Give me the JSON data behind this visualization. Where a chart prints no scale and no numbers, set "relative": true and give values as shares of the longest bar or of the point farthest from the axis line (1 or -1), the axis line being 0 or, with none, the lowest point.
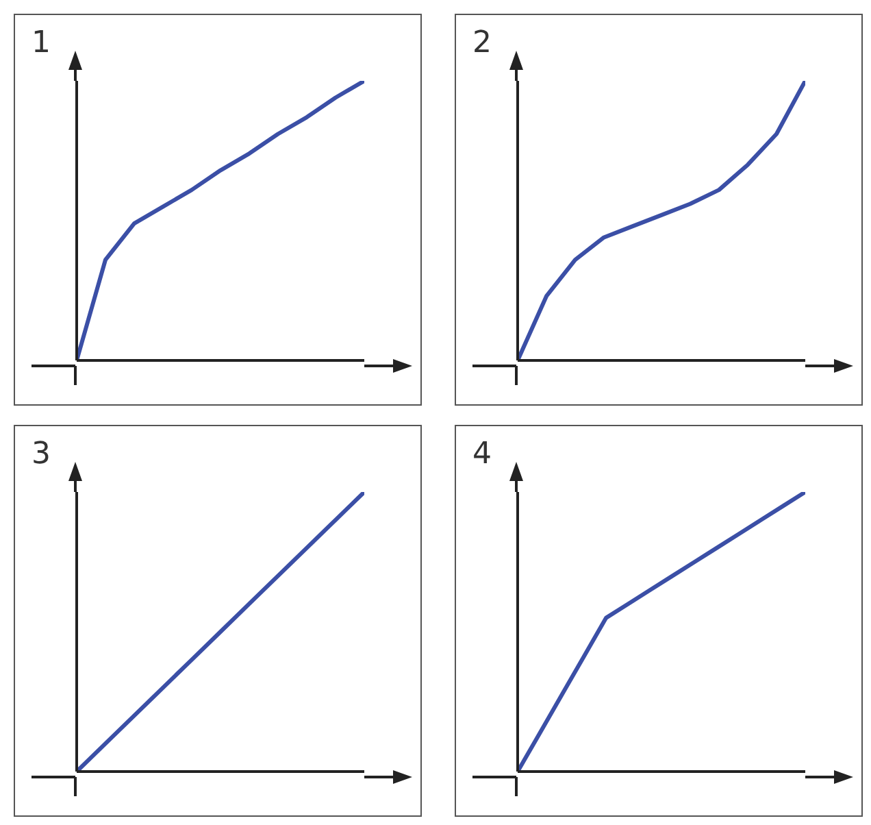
{
  "chart_data": [
    {
      "type": "line",
      "title": "1",
      "relative": true,
      "categories": [
        null,
        null,
        null,
        null,
        null,
        null,
        null,
        null,
        null,
        null,
        null
      ],
      "series": [
        {
          "color": "#3b4fa6",
          "values": [
            0,
            0.36,
            0.49,
            0.55,
            0.61,
            0.68,
            0.74,
            0.81,
            0.87,
            0.94,
            1
          ]
        }
      ]
    },
    {
      "type": "line",
      "title": "2",
      "relative": true,
      "categories": [
        null,
        null,
        null,
        null,
        null,
        null,
        null,
        null,
        null,
        null,
        null
      ],
      "series": [
        {
          "color": "#3b4fa6",
          "values": [
            0,
            0.23,
            0.36,
            0.44,
            0.48,
            0.52,
            0.56,
            0.61,
            0.7,
            0.81,
            1
          ]
        }
      ]
    },
    {
      "type": "line",
      "title": "3",
      "relative": true,
      "categories": [
        null,
        null,
        null,
        null,
        null,
        null,
        null,
        null,
        null,
        null,
        null
      ],
      "series": [
        {
          "color": "#3b4fa6",
          "values": [
            0,
            0.1,
            0.2,
            0.3,
            0.4,
            0.5,
            0.6,
            0.7,
            0.8,
            0.9,
            1
          ]
        }
      ]
    },
    {
      "type": "line",
      "title": "4",
      "relative": true,
      "categories": [
        null,
        null,
        null,
        null,
        null,
        null,
        null,
        null,
        null,
        null,
        null,
        null,
        null,
        null
      ],
      "series": [
        {
          "color": "#3b4fa6",
          "values": [
            0,
            0.1375,
            0.275,
            0.4125,
            0.55,
            0.6,
            0.65,
            0.7,
            0.75,
            0.8,
            0.85,
            0.9,
            0.95,
            1
          ]
        }
      ]
    }
  ]
}
